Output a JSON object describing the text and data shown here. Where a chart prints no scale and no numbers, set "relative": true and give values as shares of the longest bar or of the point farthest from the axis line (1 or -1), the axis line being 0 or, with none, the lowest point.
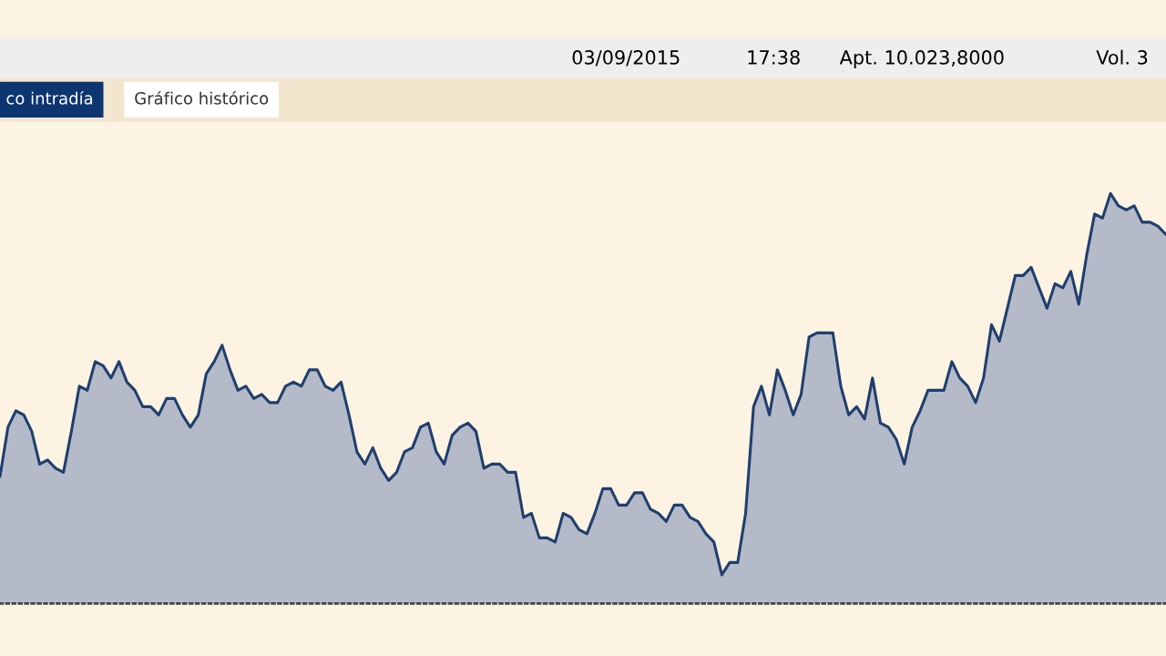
{
  "chart_data": {
    "type": "area",
    "relative": true,
    "color": "#1f3f6e",
    "categories": [
      null,
      null,
      null,
      null,
      null,
      null,
      null,
      null,
      null,
      null,
      null,
      null,
      null,
      null,
      null,
      null,
      null,
      null,
      null,
      null,
      null,
      null,
      null,
      null,
      null,
      null,
      null,
      null,
      null,
      null,
      null,
      null,
      null,
      null,
      null,
      null,
      null,
      null,
      null,
      null,
      null,
      null,
      null,
      null,
      null,
      null,
      null,
      null,
      null,
      null,
      null,
      null,
      null,
      null,
      null,
      null,
      null,
      null,
      null,
      null,
      null,
      null,
      null,
      null,
      null,
      null,
      null,
      null,
      null,
      null,
      null,
      null,
      null,
      null,
      null,
      null,
      null,
      null,
      null,
      null,
      null,
      null,
      null,
      null,
      null,
      null,
      null,
      null,
      null,
      null,
      null,
      null,
      null,
      null,
      null,
      null,
      null,
      null,
      null,
      null,
      null,
      null,
      null,
      null,
      null,
      null,
      null,
      null,
      null,
      null,
      null,
      null,
      null,
      null,
      null,
      null,
      null,
      null,
      null,
      null,
      null,
      null,
      null,
      null,
      null,
      null,
      null,
      null,
      null,
      null,
      null,
      null,
      null,
      null,
      null,
      null,
      null,
      null,
      null,
      null,
      null,
      null,
      null,
      null,
      null,
      null,
      null,
      null
    ],
    "values": [
      0.31,
      0.43,
      0.47,
      0.46,
      0.42,
      0.34,
      0.35,
      0.33,
      0.32,
      0.42,
      0.53,
      0.52,
      0.59,
      0.58,
      0.55,
      0.59,
      0.54,
      0.52,
      0.48,
      0.48,
      0.46,
      0.5,
      0.5,
      0.46,
      0.43,
      0.46,
      0.56,
      0.59,
      0.63,
      0.57,
      0.52,
      0.53,
      0.5,
      0.51,
      0.49,
      0.49,
      0.53,
      0.54,
      0.53,
      0.57,
      0.57,
      0.53,
      0.52,
      0.54,
      0.46,
      0.37,
      0.34,
      0.38,
      0.33,
      0.3,
      0.32,
      0.37,
      0.38,
      0.43,
      0.44,
      0.37,
      0.34,
      0.41,
      0.43,
      0.44,
      0.42,
      0.33,
      0.34,
      0.34,
      0.32,
      0.32,
      0.21,
      0.22,
      0.16,
      0.16,
      0.15,
      0.22,
      0.21,
      0.18,
      0.17,
      0.22,
      0.28,
      0.28,
      0.24,
      0.24,
      0.27,
      0.27,
      0.23,
      0.22,
      0.2,
      0.24,
      0.24,
      0.21,
      0.2,
      0.17,
      0.15,
      0.07,
      0.1,
      0.1,
      0.22,
      0.48,
      0.53,
      0.46,
      0.57,
      0.52,
      0.46,
      0.51,
      0.65,
      0.66,
      0.66,
      0.66,
      0.53,
      0.46,
      0.48,
      0.45,
      0.55,
      0.44,
      0.43,
      0.4,
      0.34,
      0.43,
      0.47,
      0.52,
      0.52,
      0.52,
      0.59,
      0.55,
      0.53,
      0.49,
      0.55,
      0.68,
      0.64,
      0.72,
      0.8,
      0.8,
      0.82,
      0.77,
      0.72,
      0.78,
      0.77,
      0.81,
      0.73,
      0.85,
      0.95,
      0.94,
      1,
      0.97,
      0.96,
      0.97,
      0.93,
      0.93,
      0.92,
      0.9
    ],
    "annotations": [
      "03/09/2015",
      "17:38",
      "Apt. 10.023,8000",
      "Vol. 3",
      "co intradía",
      "Gráfico histórico"
    ]
  }
}
